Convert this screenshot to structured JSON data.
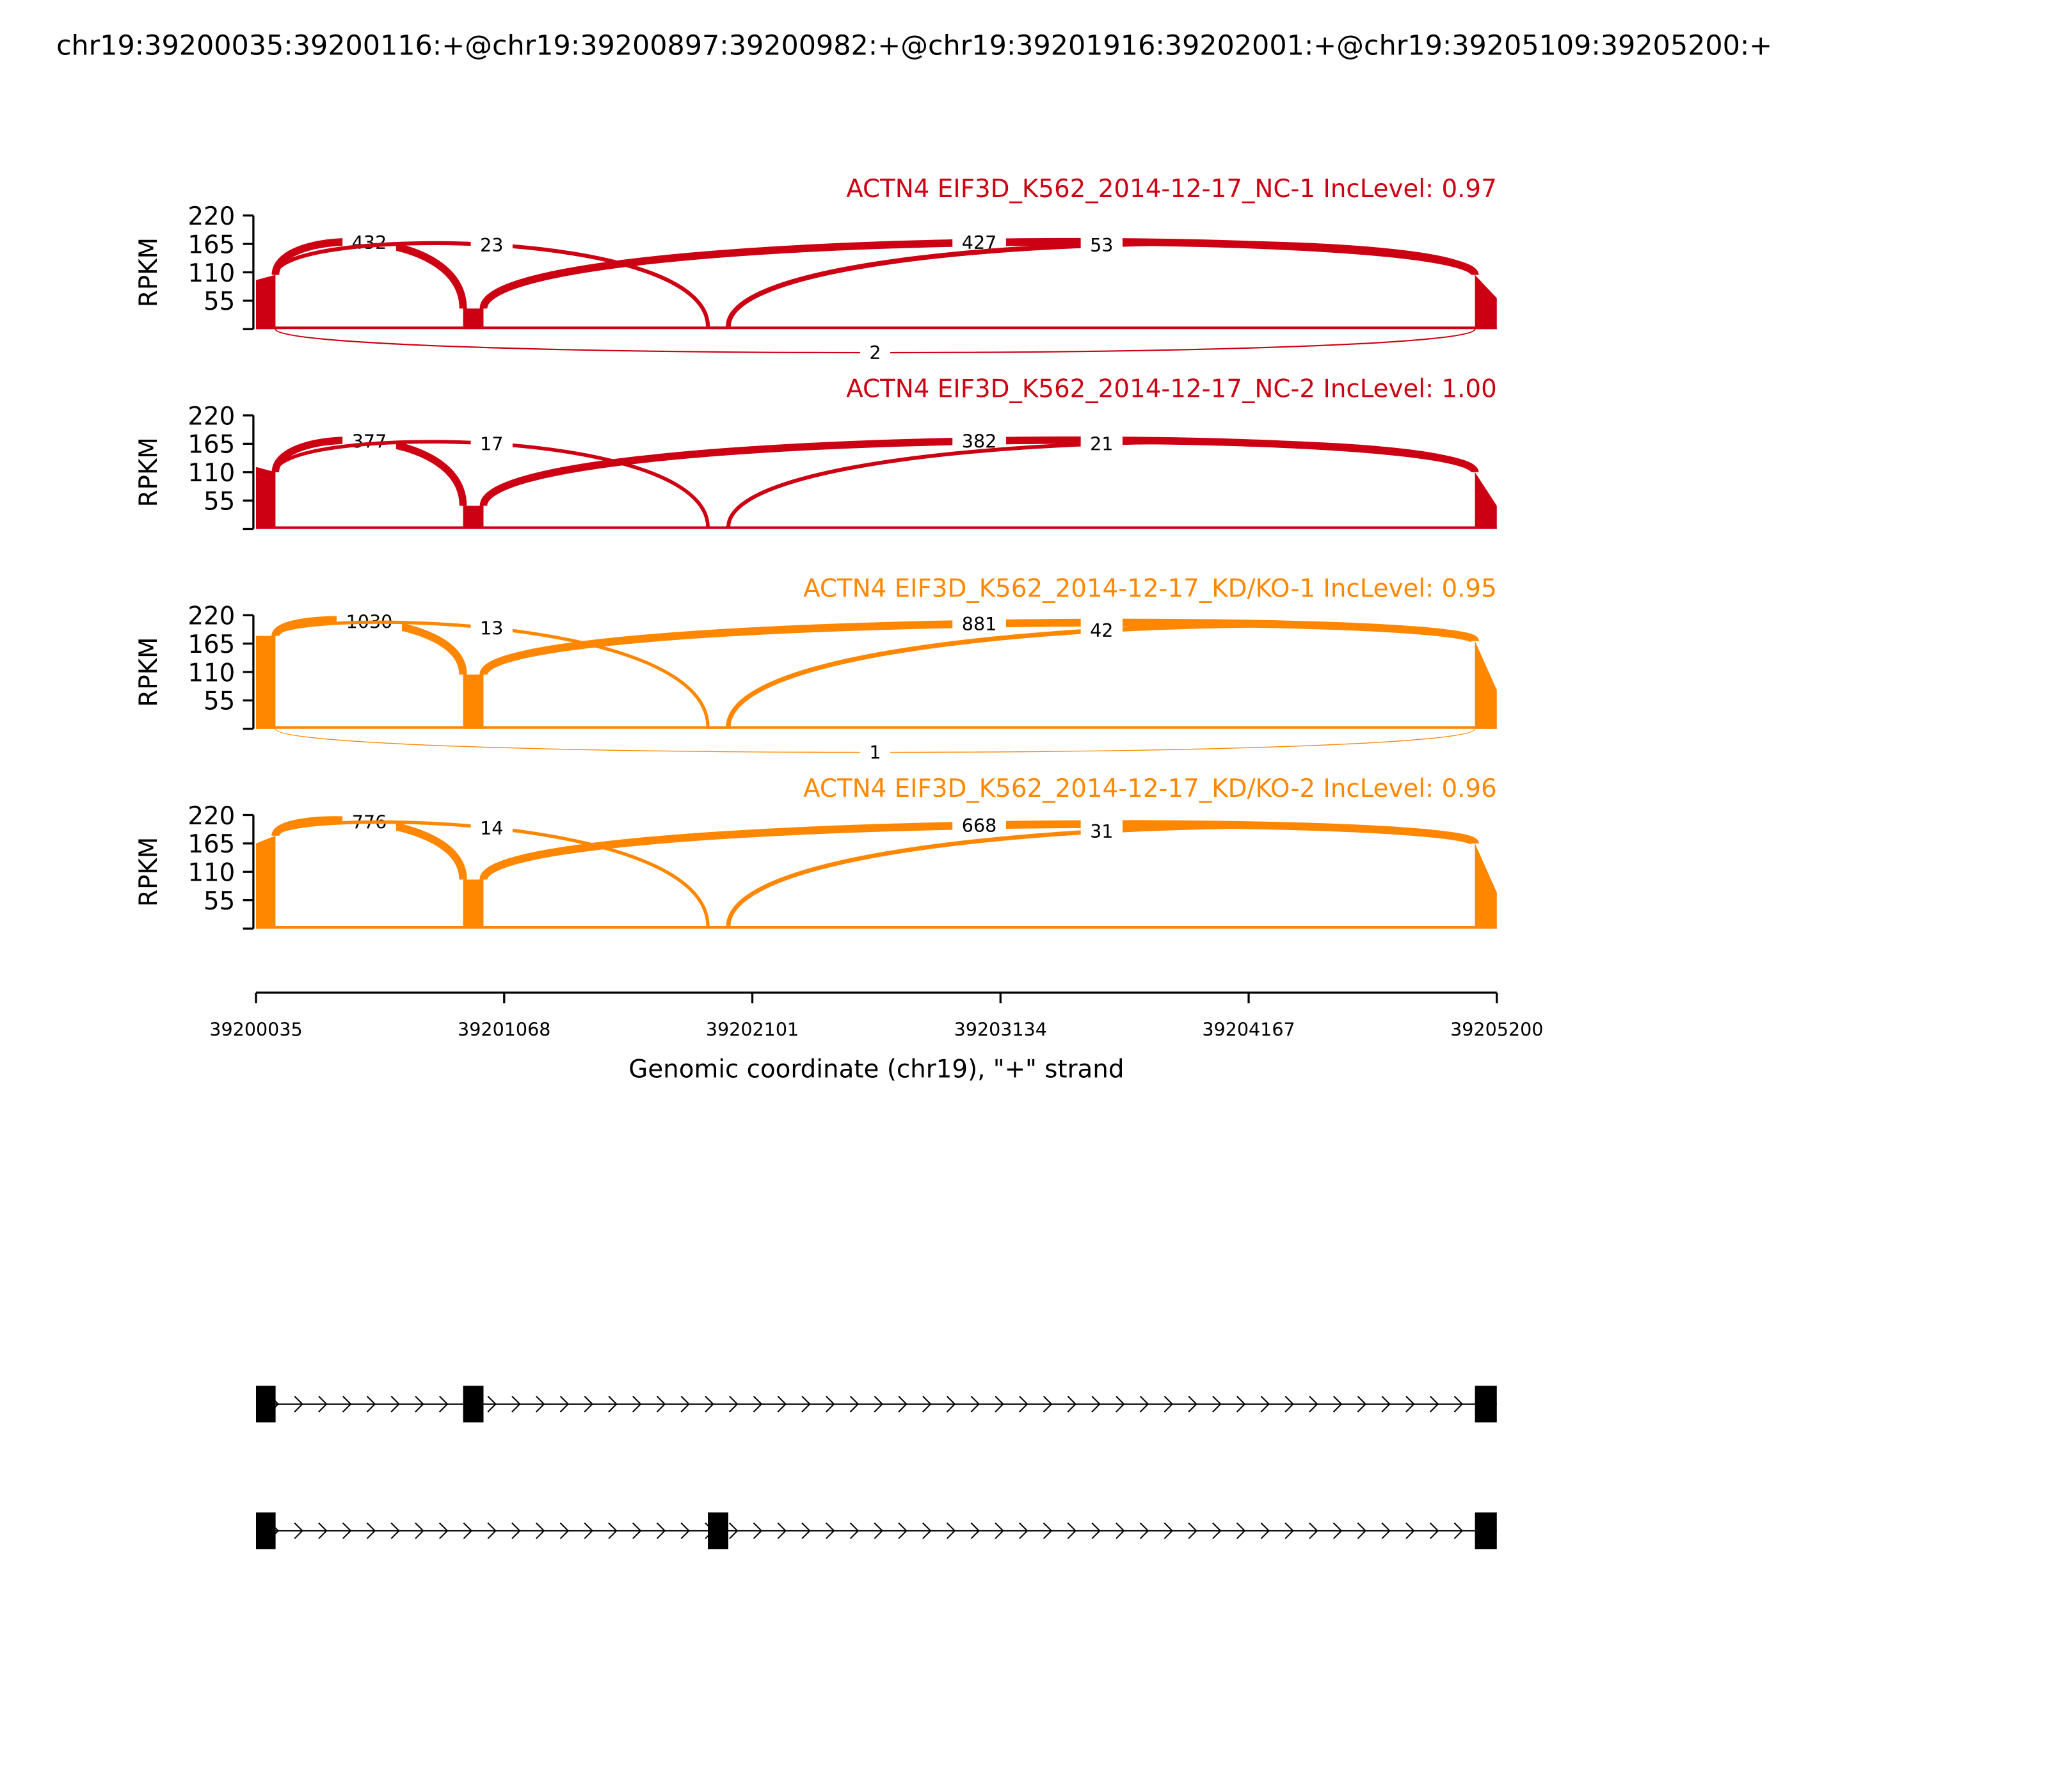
{
  "title": "chr19:39200035:39200116:+@chr19:39200897:39200982:+@chr19:39201916:39202001:+@chr19:39205109:39205200:+",
  "colors": {
    "nc": "#cc0012",
    "kd": "#ff8700",
    "text": "#000000"
  },
  "chart_data": {
    "type": "sashimi",
    "xlabel": "Genomic coordinate (chr19), \"+\" strand",
    "xlim": [
      39200035,
      39205200
    ],
    "xticks": [
      "39200035",
      "39201068",
      "39202101",
      "39203134",
      "39204167",
      "39205200"
    ],
    "ylabel": "RPKM",
    "ylim": [
      0,
      220
    ],
    "yticks": [
      "55",
      "110",
      "165",
      "220"
    ],
    "exons": [
      [
        39200035,
        39200116
      ],
      [
        39200897,
        39200982
      ],
      [
        39201916,
        39202001
      ],
      [
        39205109,
        39205200
      ]
    ],
    "transcripts": [
      [
        0,
        1,
        3
      ],
      [
        0,
        2,
        3
      ]
    ],
    "samples": [
      {
        "label": "ACTN4 EIF3D_K562_2014-12-17_NC-1 IncLevel: 0.97",
        "color": "#cc0012",
        "exon_coverage": [
          [
            95,
            105
          ],
          [
            40,
            40
          ],
          [
            5,
            5
          ],
          [
            105,
            60
          ]
        ],
        "junctions": [
          {
            "from": 39200116,
            "to": 39200897,
            "count": "432",
            "side": "up"
          },
          {
            "from": 39200982,
            "to": 39205109,
            "count": "427",
            "side": "up"
          },
          {
            "from": 39200116,
            "to": 39201916,
            "count": "23",
            "side": "up"
          },
          {
            "from": 39202001,
            "to": 39205109,
            "count": "53",
            "side": "up"
          },
          {
            "from": 39200116,
            "to": 39205109,
            "count": "2",
            "side": "down"
          }
        ]
      },
      {
        "label": "ACTN4 EIF3D_K562_2014-12-17_NC-2 IncLevel: 1.00",
        "color": "#cc0012",
        "exon_coverage": [
          [
            120,
            110
          ],
          [
            45,
            45
          ],
          [
            3,
            3
          ],
          [
            110,
            45
          ]
        ],
        "junctions": [
          {
            "from": 39200116,
            "to": 39200897,
            "count": "377",
            "side": "up"
          },
          {
            "from": 39200982,
            "to": 39205109,
            "count": "382",
            "side": "up"
          },
          {
            "from": 39200116,
            "to": 39201916,
            "count": "17",
            "side": "up"
          },
          {
            "from": 39202001,
            "to": 39205109,
            "count": "21",
            "side": "up"
          }
        ]
      },
      {
        "label": "ACTN4 EIF3D_K562_2014-12-17_KD/KO-1 IncLevel: 0.95",
        "color": "#ff8700",
        "exon_coverage": [
          [
            180,
            180
          ],
          [
            105,
            105
          ],
          [
            3,
            3
          ],
          [
            170,
            75
          ]
        ],
        "junctions": [
          {
            "from": 39200116,
            "to": 39200897,
            "count": "1030",
            "side": "up"
          },
          {
            "from": 39200982,
            "to": 39205109,
            "count": "881",
            "side": "up"
          },
          {
            "from": 39200116,
            "to": 39201916,
            "count": "13",
            "side": "up"
          },
          {
            "from": 39202001,
            "to": 39205109,
            "count": "42",
            "side": "up"
          },
          {
            "from": 39200116,
            "to": 39205109,
            "count": "1",
            "side": "down"
          }
        ]
      },
      {
        "label": "ACTN4 EIF3D_K562_2014-12-17_KD/KO-2 IncLevel: 0.96",
        "color": "#ff8700",
        "exon_coverage": [
          [
            165,
            180
          ],
          [
            95,
            95
          ],
          [
            4,
            4
          ],
          [
            165,
            70
          ]
        ],
        "junctions": [
          {
            "from": 39200116,
            "to": 39200897,
            "count": "776",
            "side": "up"
          },
          {
            "from": 39200982,
            "to": 39205109,
            "count": "668",
            "side": "up"
          },
          {
            "from": 39200116,
            "to": 39201916,
            "count": "14",
            "side": "up"
          },
          {
            "from": 39202001,
            "to": 39205109,
            "count": "31",
            "side": "up"
          }
        ]
      }
    ]
  }
}
